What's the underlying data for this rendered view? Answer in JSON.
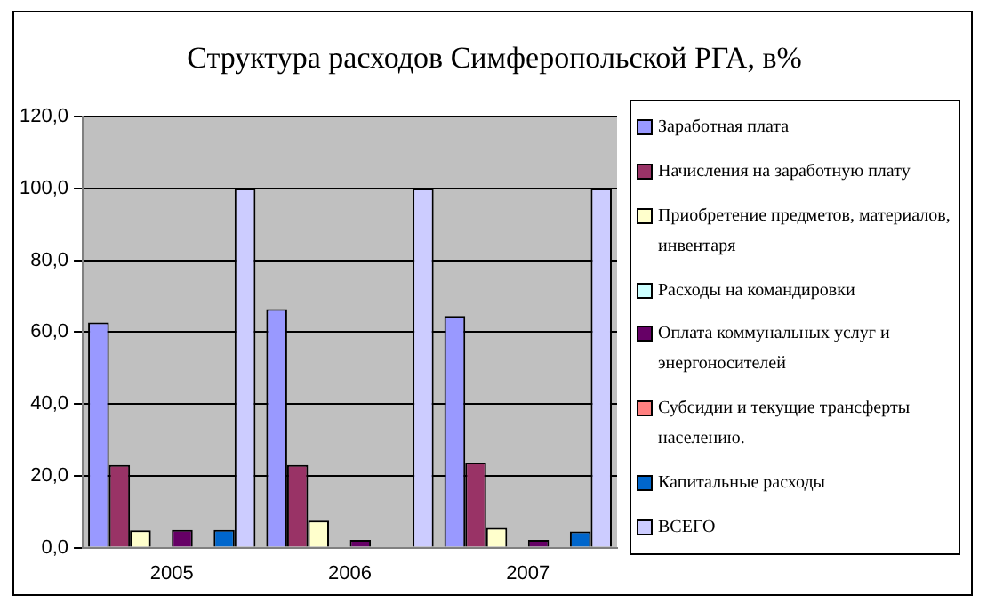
{
  "chart_data": {
    "type": "bar",
    "title": "Структура расходов Симферопольской РГА, в%",
    "categories": [
      "2005",
      "2006",
      "2007"
    ],
    "series": [
      {
        "name": "Заработная плата",
        "color": "#9999ff",
        "values": [
          62.7,
          66.4,
          64.5
        ]
      },
      {
        "name": "Начисления на заработную плату",
        "color": "#993366",
        "values": [
          23.0,
          23.0,
          23.7
        ]
      },
      {
        "name": "Приобретение предметов, материалов, инвентаря",
        "color": "#ffffcc",
        "values": [
          4.8,
          7.5,
          5.5
        ]
      },
      {
        "name": "Расходы на командировки",
        "color": "#ccffff",
        "values": [
          0,
          0,
          0
        ]
      },
      {
        "name": "Оплата коммунальных услуг и энергоносителей",
        "color": "#660066",
        "values": [
          4.9,
          2.1,
          2.1
        ]
      },
      {
        "name": "Субсидии и текущие трансферты населению.",
        "color": "#ff8080",
        "values": [
          null,
          null,
          0
        ]
      },
      {
        "name": "Капитальные расходы",
        "color": "#0066cc",
        "values": [
          4.9,
          null,
          4.5
        ]
      },
      {
        "name": "ВСЕГО",
        "color": "#ccccff",
        "values": [
          100,
          100,
          100
        ]
      }
    ],
    "ylim": [
      0,
      120
    ],
    "yticks": [
      {
        "value": 0,
        "label": "0,0"
      },
      {
        "value": 20,
        "label": "20,0"
      },
      {
        "value": 40,
        "label": "40,0"
      },
      {
        "value": 60,
        "label": "60,0"
      },
      {
        "value": 80,
        "label": "80,0"
      },
      {
        "value": 100,
        "label": "100,0"
      },
      {
        "value": 120,
        "label": "120,0"
      }
    ],
    "grid": "y",
    "legend": "right"
  }
}
